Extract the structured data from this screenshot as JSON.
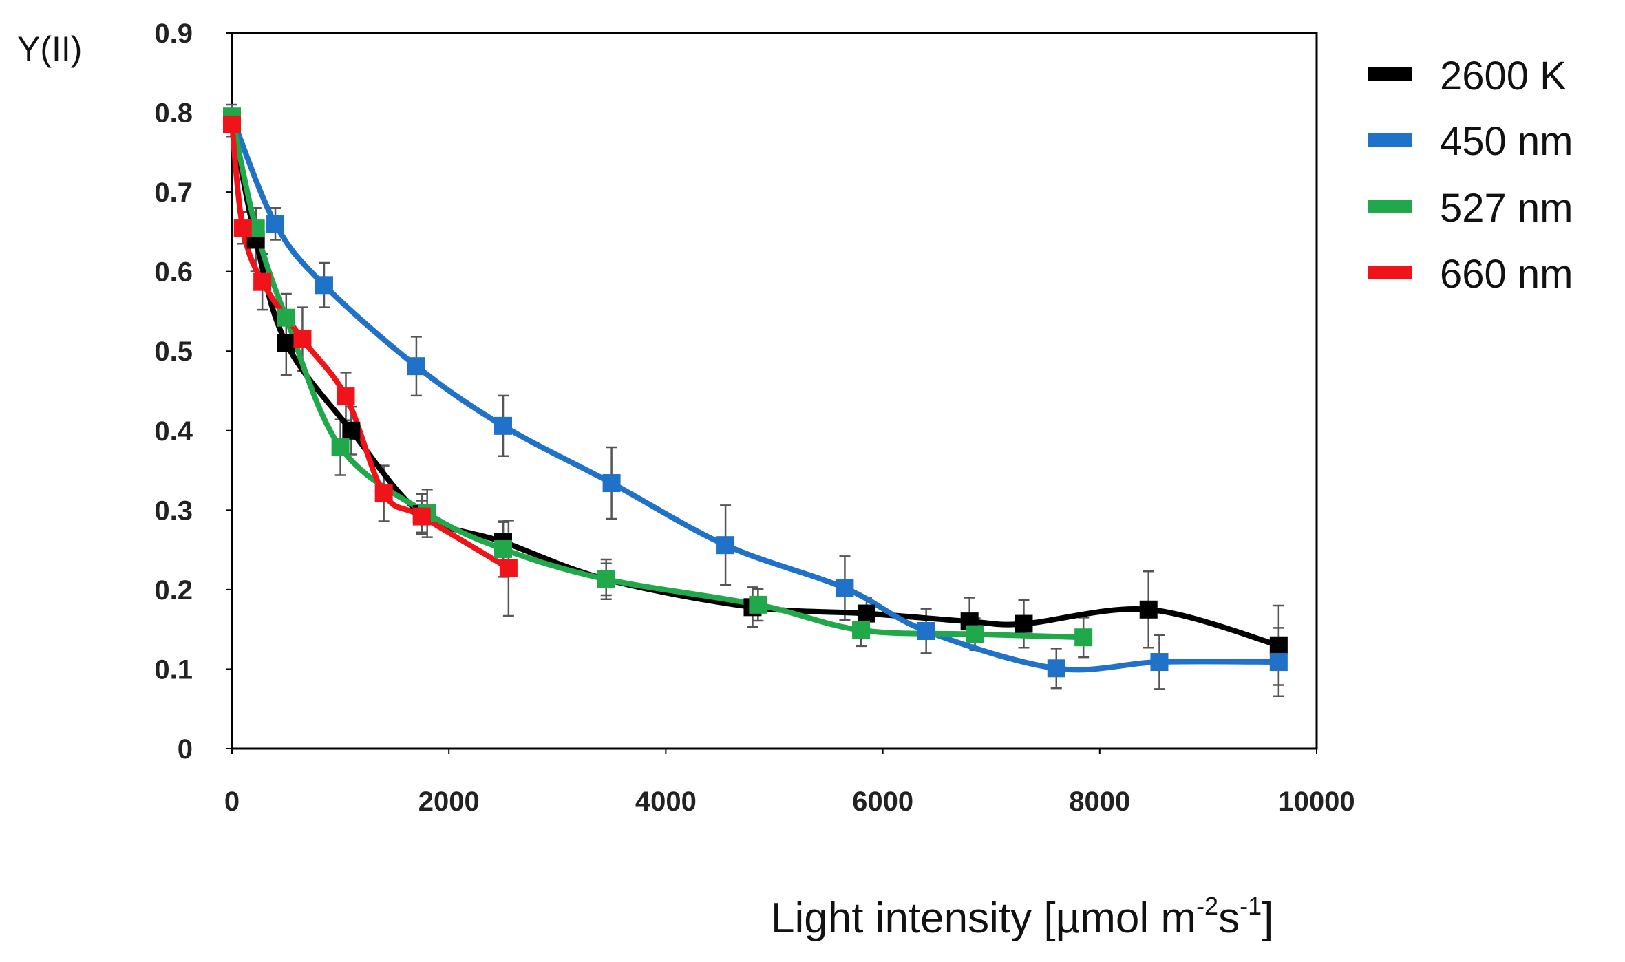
{
  "chart_data": {
    "type": "line",
    "title": "",
    "ylabel": "Y(II)",
    "xlabel": {
      "text": "Light intensity [µmol m",
      "sup1": "-2",
      "mid": "s",
      "sup2": "-1",
      "end": "]"
    },
    "xlim": [
      0,
      10000
    ],
    "ylim": [
      0,
      0.9
    ],
    "xticks": [
      "0",
      "2000",
      "4000",
      "6000",
      "8000",
      "10000"
    ],
    "yticks": [
      "0",
      "0.1",
      "0.2",
      "0.3",
      "0.4",
      "0.5",
      "0.6",
      "0.7",
      "0.8",
      "0.9"
    ],
    "grid": false,
    "legend_position": "right",
    "series": [
      {
        "name": "2600 K",
        "color": "#000000",
        "x": [
          0,
          220,
          500,
          1100,
          1750,
          2500,
          3450,
          4800,
          5850,
          6800,
          7300,
          8450,
          9650
        ],
        "y": [
          0.79,
          0.64,
          0.51,
          0.4,
          0.295,
          0.26,
          0.213,
          0.178,
          0.17,
          0.16,
          0.157,
          0.175,
          0.13
        ],
        "err": [
          0.02,
          0.04,
          0.04,
          0.03,
          0.025,
          0.025,
          0.025,
          0.025,
          0.02,
          0.03,
          0.03,
          0.048,
          0.05
        ]
      },
      {
        "name": "450 nm",
        "color": "#1F72C7",
        "x": [
          0,
          400,
          850,
          1700,
          2500,
          3500,
          4550,
          5650,
          6400,
          7600,
          8550,
          9650
        ],
        "y": [
          0.795,
          0.66,
          0.583,
          0.481,
          0.406,
          0.334,
          0.256,
          0.202,
          0.148,
          0.101,
          0.109,
          0.109
        ],
        "err": [
          0.01,
          0.02,
          0.028,
          0.037,
          0.038,
          0.045,
          0.05,
          0.04,
          0.028,
          0.025,
          0.034,
          0.043
        ]
      },
      {
        "name": "527 nm",
        "color": "#21A84A",
        "x": [
          0,
          220,
          500,
          1000,
          1800,
          2500,
          3450,
          4850,
          5800,
          6850,
          7850
        ],
        "y": [
          0.795,
          0.655,
          0.542,
          0.379,
          0.296,
          0.251,
          0.213,
          0.181,
          0.149,
          0.144,
          0.14
        ],
        "err": [
          0.01,
          0.025,
          0.03,
          0.035,
          0.03,
          0.035,
          0.02,
          0.02,
          0.02,
          0.02,
          0.025
        ]
      },
      {
        "name": "660 nm",
        "color": "#F0141A",
        "x": [
          0,
          100,
          280,
          650,
          1050,
          1400,
          1750,
          2550
        ],
        "y": [
          0.785,
          0.655,
          0.587,
          0.515,
          0.443,
          0.321,
          0.292,
          0.227
        ],
        "err": [
          0.01,
          0.02,
          0.035,
          0.04,
          0.03,
          0.035,
          0.02,
          0.06
        ]
      }
    ]
  }
}
